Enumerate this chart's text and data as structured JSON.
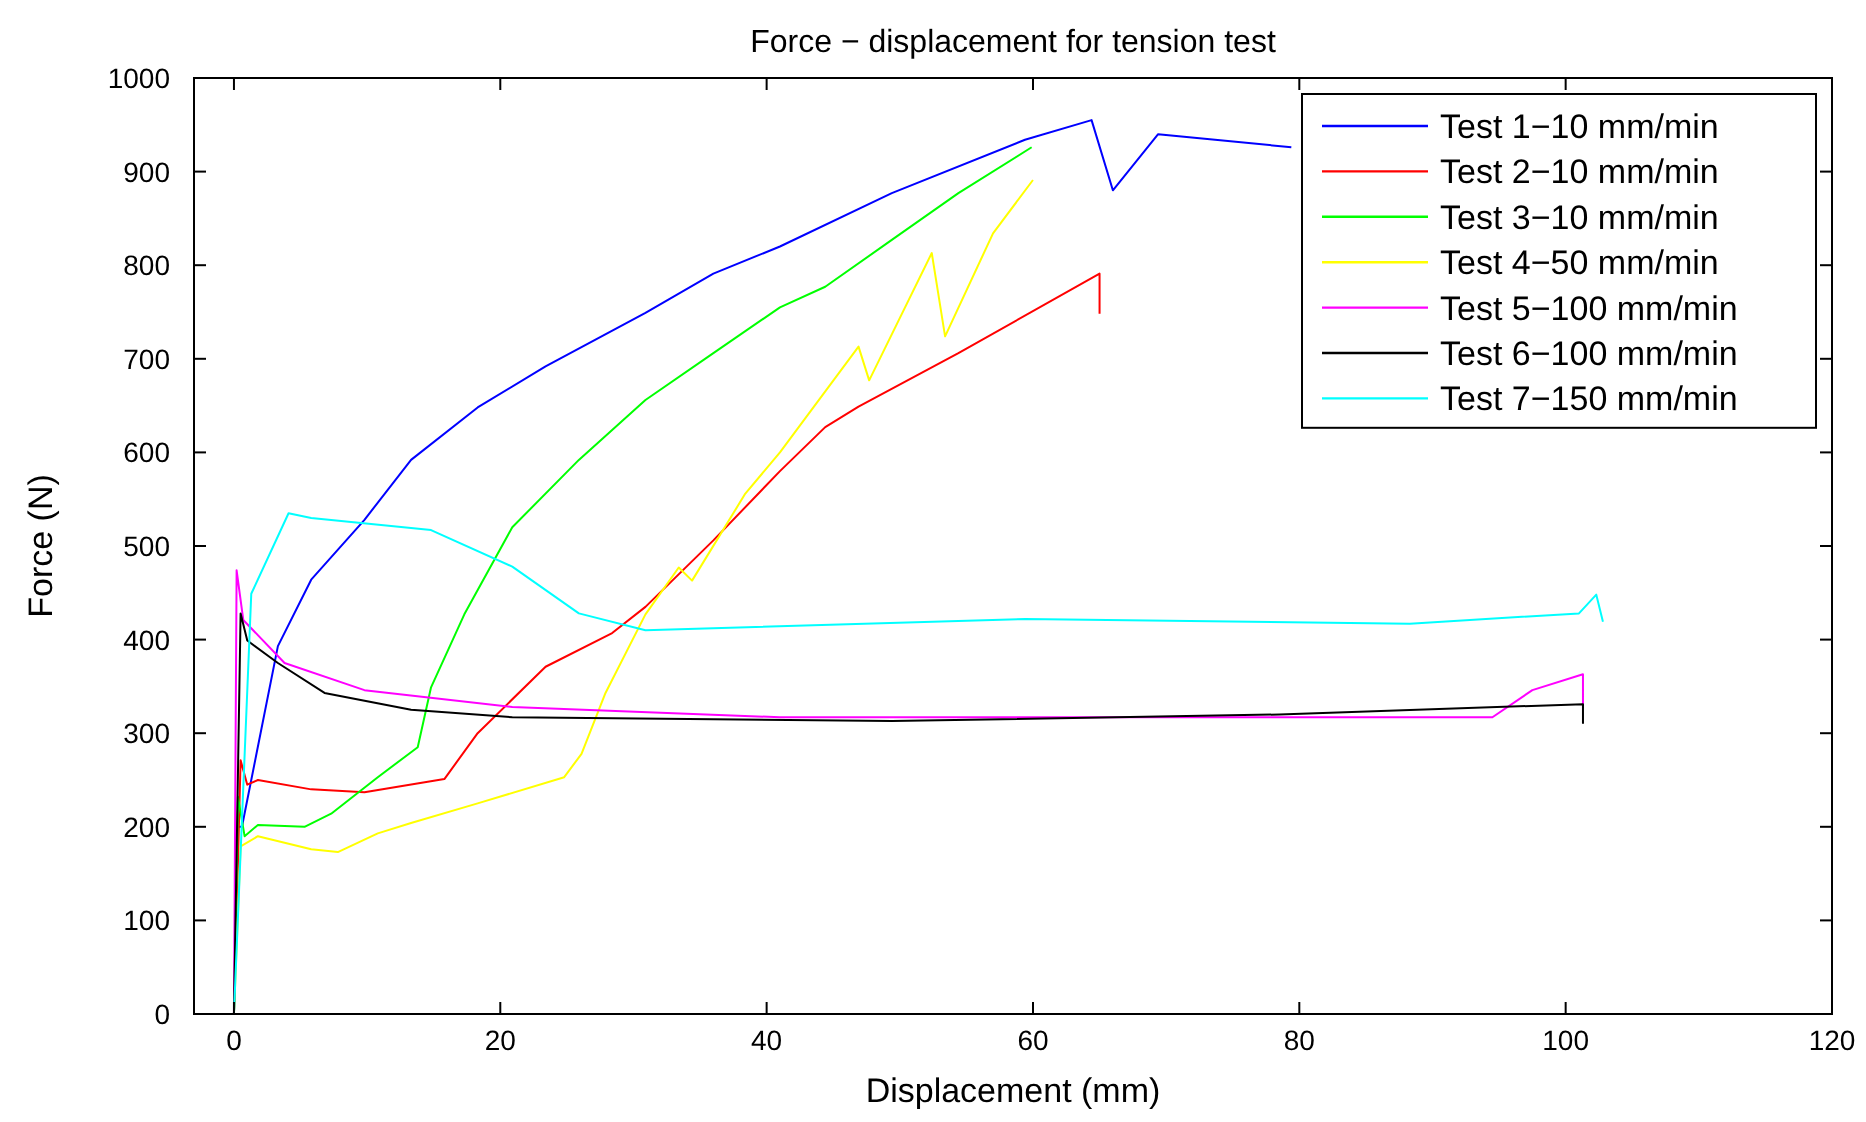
{
  "chart_data": {
    "type": "line",
    "title": "Force − displacement for tension test",
    "xlabel": "Displacement (mm)",
    "ylabel": "Force (N)",
    "xlim": [
      -3,
      120
    ],
    "xticks": [
      0,
      20,
      40,
      60,
      80,
      100,
      120
    ],
    "ylim": [
      0,
      1000
    ],
    "yticks": [
      0,
      100,
      200,
      300,
      400,
      500,
      600,
      700,
      800,
      900,
      1000
    ],
    "grid": false,
    "legend": "top right",
    "line_style": "solid",
    "marker": "none",
    "series": [
      {
        "name": "Test 1−10 mm/min",
        "color": "#0000ff",
        "x": [
          0,
          0.3,
          0.6,
          3.3,
          5.8,
          9.8,
          13.3,
          18.3,
          23.4,
          30.9,
          36,
          41,
          49.4,
          59.4,
          64.4,
          66,
          69.4,
          79.4
        ],
        "values": [
          0,
          200,
          200,
          393,
          464,
          528,
          592,
          648,
          692,
          749,
          791,
          820,
          877,
          934,
          955,
          880,
          940,
          926
        ]
      },
      {
        "name": "Test 2−10 mm/min",
        "color": "#ff0000",
        "x": [
          0,
          0.5,
          1,
          1.8,
          5.8,
          9.8,
          15.8,
          18.3,
          23.4,
          28.4,
          30.9,
          36,
          41,
          44.4,
          46.9,
          54.4,
          65,
          65
        ],
        "values": [
          0,
          271,
          245,
          250,
          240,
          237,
          251,
          300,
          371,
          407,
          435,
          506,
          580,
          627,
          649,
          706,
          791,
          748
        ]
      },
      {
        "name": "Test 3−10 mm/min",
        "color": "#00ff00",
        "x": [
          0,
          0.3,
          0.8,
          1.8,
          5.3,
          7.3,
          10.8,
          13.8,
          14.8,
          17.3,
          20.9,
          25.9,
          30.9,
          36,
          41,
          44.4,
          49.4,
          54.4,
          59.9
        ],
        "values": [
          0,
          232,
          190,
          202,
          200,
          214,
          253,
          285,
          349,
          427,
          520,
          592,
          656,
          706,
          755,
          777,
          827,
          877,
          926
        ]
      },
      {
        "name": "Test 4−50 mm/min",
        "color": "#ffff00",
        "x": [
          0,
          0.5,
          1.8,
          5.8,
          7.8,
          10.8,
          13.3,
          18.3,
          24.8,
          26.1,
          27.9,
          30.9,
          33.4,
          34.4,
          38.4,
          41,
          46.9,
          47.7,
          52.4,
          53.4,
          57,
          60
        ],
        "values": [
          0,
          179,
          190,
          176,
          173,
          193,
          204,
          225,
          253,
          278,
          343,
          427,
          477,
          463,
          556,
          600,
          713,
          677,
          813,
          724,
          834,
          891
        ]
      },
      {
        "name": "Test 5−100 mm/min",
        "color": "#ff00ff",
        "x": [
          0,
          0.2,
          0.7,
          3.8,
          9.8,
          20.9,
          41,
          94.5,
          97.5,
          101.3,
          101.3
        ],
        "values": [
          0,
          474,
          421,
          375,
          346,
          328,
          317,
          317,
          346,
          363,
          328
        ]
      },
      {
        "name": "Test 6−100 mm/min",
        "color": "#000000",
        "x": [
          0,
          0.5,
          1,
          3.3,
          6.8,
          13.3,
          20.9,
          49.4,
          78.5,
          101.3,
          101.3
        ],
        "values": [
          0,
          428,
          399,
          375,
          343,
          325,
          317,
          313,
          320,
          331,
          310
        ]
      },
      {
        "name": "Test 7−150 mm/min",
        "color": "#00ffff",
        "x": [
          0,
          1.3,
          4.1,
          5.8,
          14.8,
          20.9,
          25.9,
          30.9,
          59.4,
          88.3,
          101,
          102.3,
          102.8
        ],
        "values": [
          0,
          449,
          535,
          530,
          517,
          478,
          428,
          410,
          422,
          417,
          428,
          448,
          419
        ]
      }
    ]
  }
}
